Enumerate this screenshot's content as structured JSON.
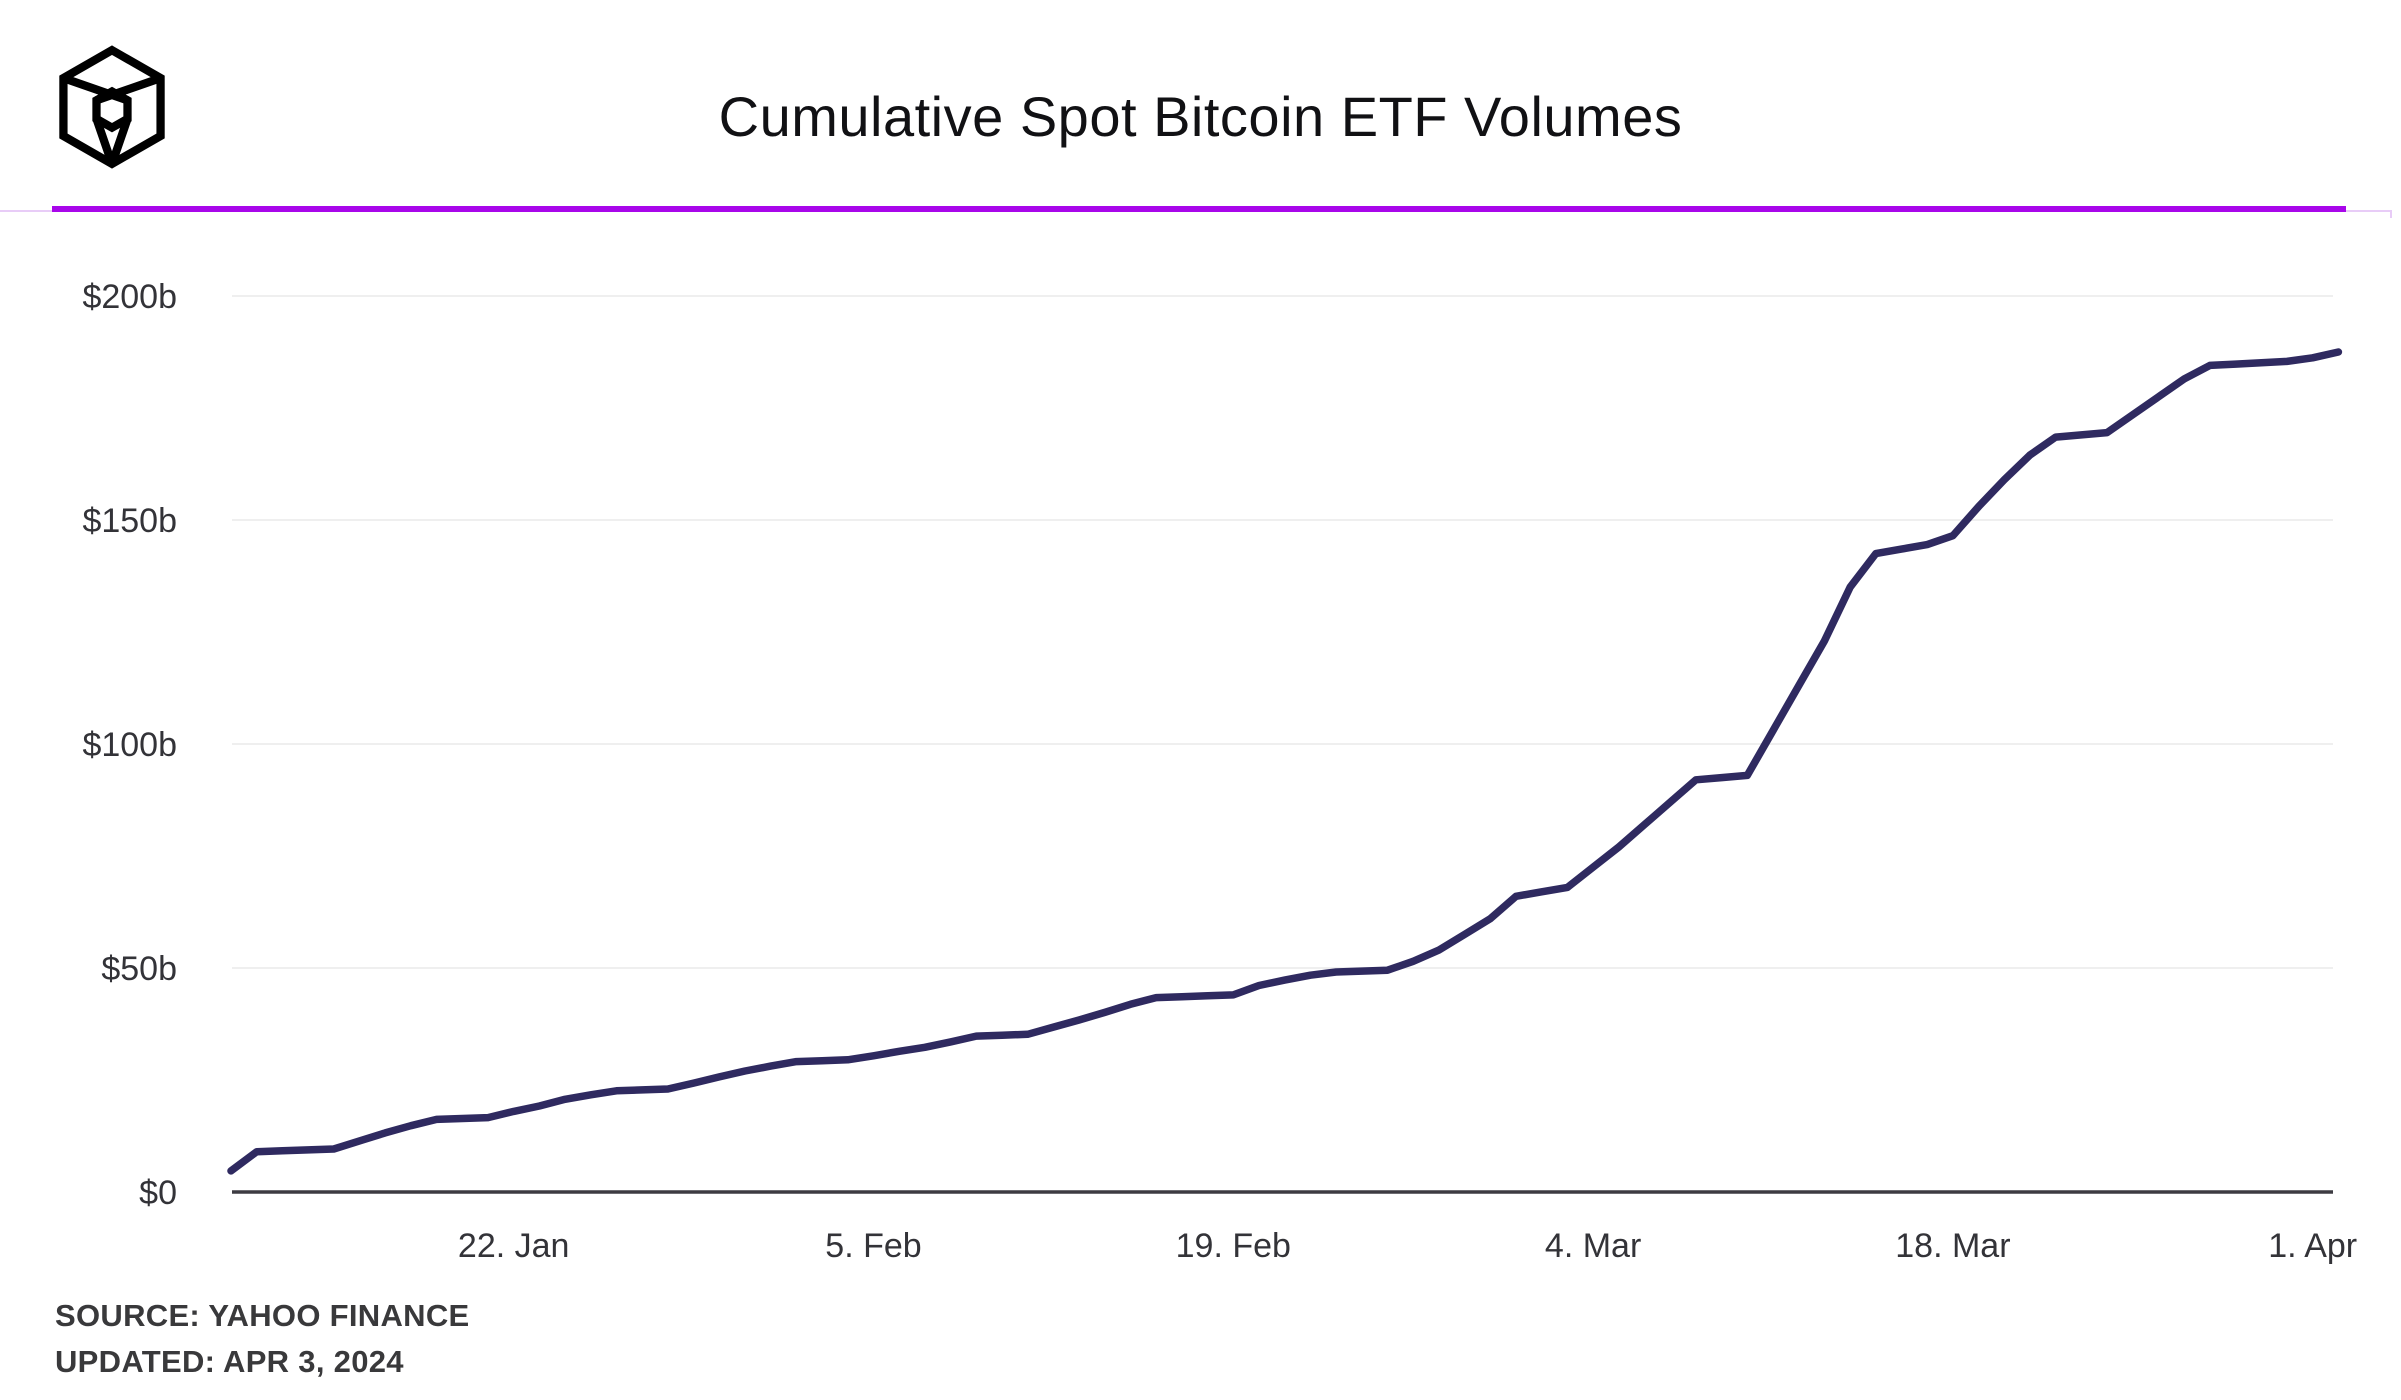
{
  "header": {
    "title": "Cumulative Spot Bitcoin ETF Volumes",
    "logo_name": "the-block-cube-logo"
  },
  "divider": {
    "accent_color": "#a806ea",
    "track_color": "#e8ccf7"
  },
  "footer": {
    "source_line": "SOURCE: YAHOO FINANCE",
    "updated_line": "UPDATED: APR 3, 2024"
  },
  "chart_data": {
    "type": "line",
    "title": "Cumulative Spot Bitcoin ETF Volumes",
    "xlabel": "",
    "ylabel": "",
    "unit": "billions USD",
    "x_axis_type": "calendar-daily",
    "start_date": "2024-01-11",
    "end_date": "2024-04-02",
    "ylim": [
      0,
      212
    ],
    "grid": "horizontal-only",
    "legend": "none",
    "y_ticks": [
      {
        "label": "$200b",
        "value": 200
      },
      {
        "label": "$150b",
        "value": 150
      },
      {
        "label": "$100b",
        "value": 100
      },
      {
        "label": "$50b",
        "value": 50
      },
      {
        "label": "$0",
        "value": 0
      }
    ],
    "x_ticks": [
      {
        "label": "22. Jan",
        "day_offset": 11
      },
      {
        "label": "5. Feb",
        "day_offset": 25
      },
      {
        "label": "19. Feb",
        "day_offset": 39
      },
      {
        "label": "4. Mar",
        "day_offset": 53
      },
      {
        "label": "18. Mar",
        "day_offset": 67
      },
      {
        "label": "1. Apr",
        "day_offset": 81
      }
    ],
    "series": [
      {
        "name": "Cumulative spot Bitcoin ETF volume ($b)",
        "values": [
          4.7,
          9.0,
          9.2,
          9.4,
          9.6,
          11.4,
          13.2,
          14.8,
          16.2,
          16.4,
          16.6,
          18.0,
          19.2,
          20.7,
          21.7,
          22.6,
          22.8,
          23.0,
          24.3,
          25.7,
          27.0,
          28.1,
          29.1,
          29.3,
          29.5,
          30.4,
          31.4,
          32.3,
          33.5,
          34.8,
          35.0,
          35.2,
          36.8,
          38.4,
          40.1,
          41.9,
          43.4,
          43.6,
          43.8,
          44.0,
          46.1,
          47.3,
          48.4,
          49.1,
          49.3,
          49.5,
          51.5,
          54.0,
          57.5,
          61.0,
          66.0,
          67.0,
          68.0,
          72.5,
          77.0,
          82.0,
          87.0,
          92.0,
          92.5,
          93.0,
          103.0,
          113.0,
          123.0,
          135.0,
          142.5,
          143.5,
          144.5,
          146.5,
          153.0,
          159.0,
          164.5,
          168.5,
          169.0,
          169.5,
          173.5,
          177.5,
          181.5,
          184.5,
          184.8,
          185.1,
          185.4,
          186.2,
          187.5
        ]
      }
    ],
    "style": {
      "line_color": "#2f2a60",
      "grid_color": "#efefef",
      "axis_color": "#3d3b42",
      "tick_text_color": "#333338"
    }
  }
}
